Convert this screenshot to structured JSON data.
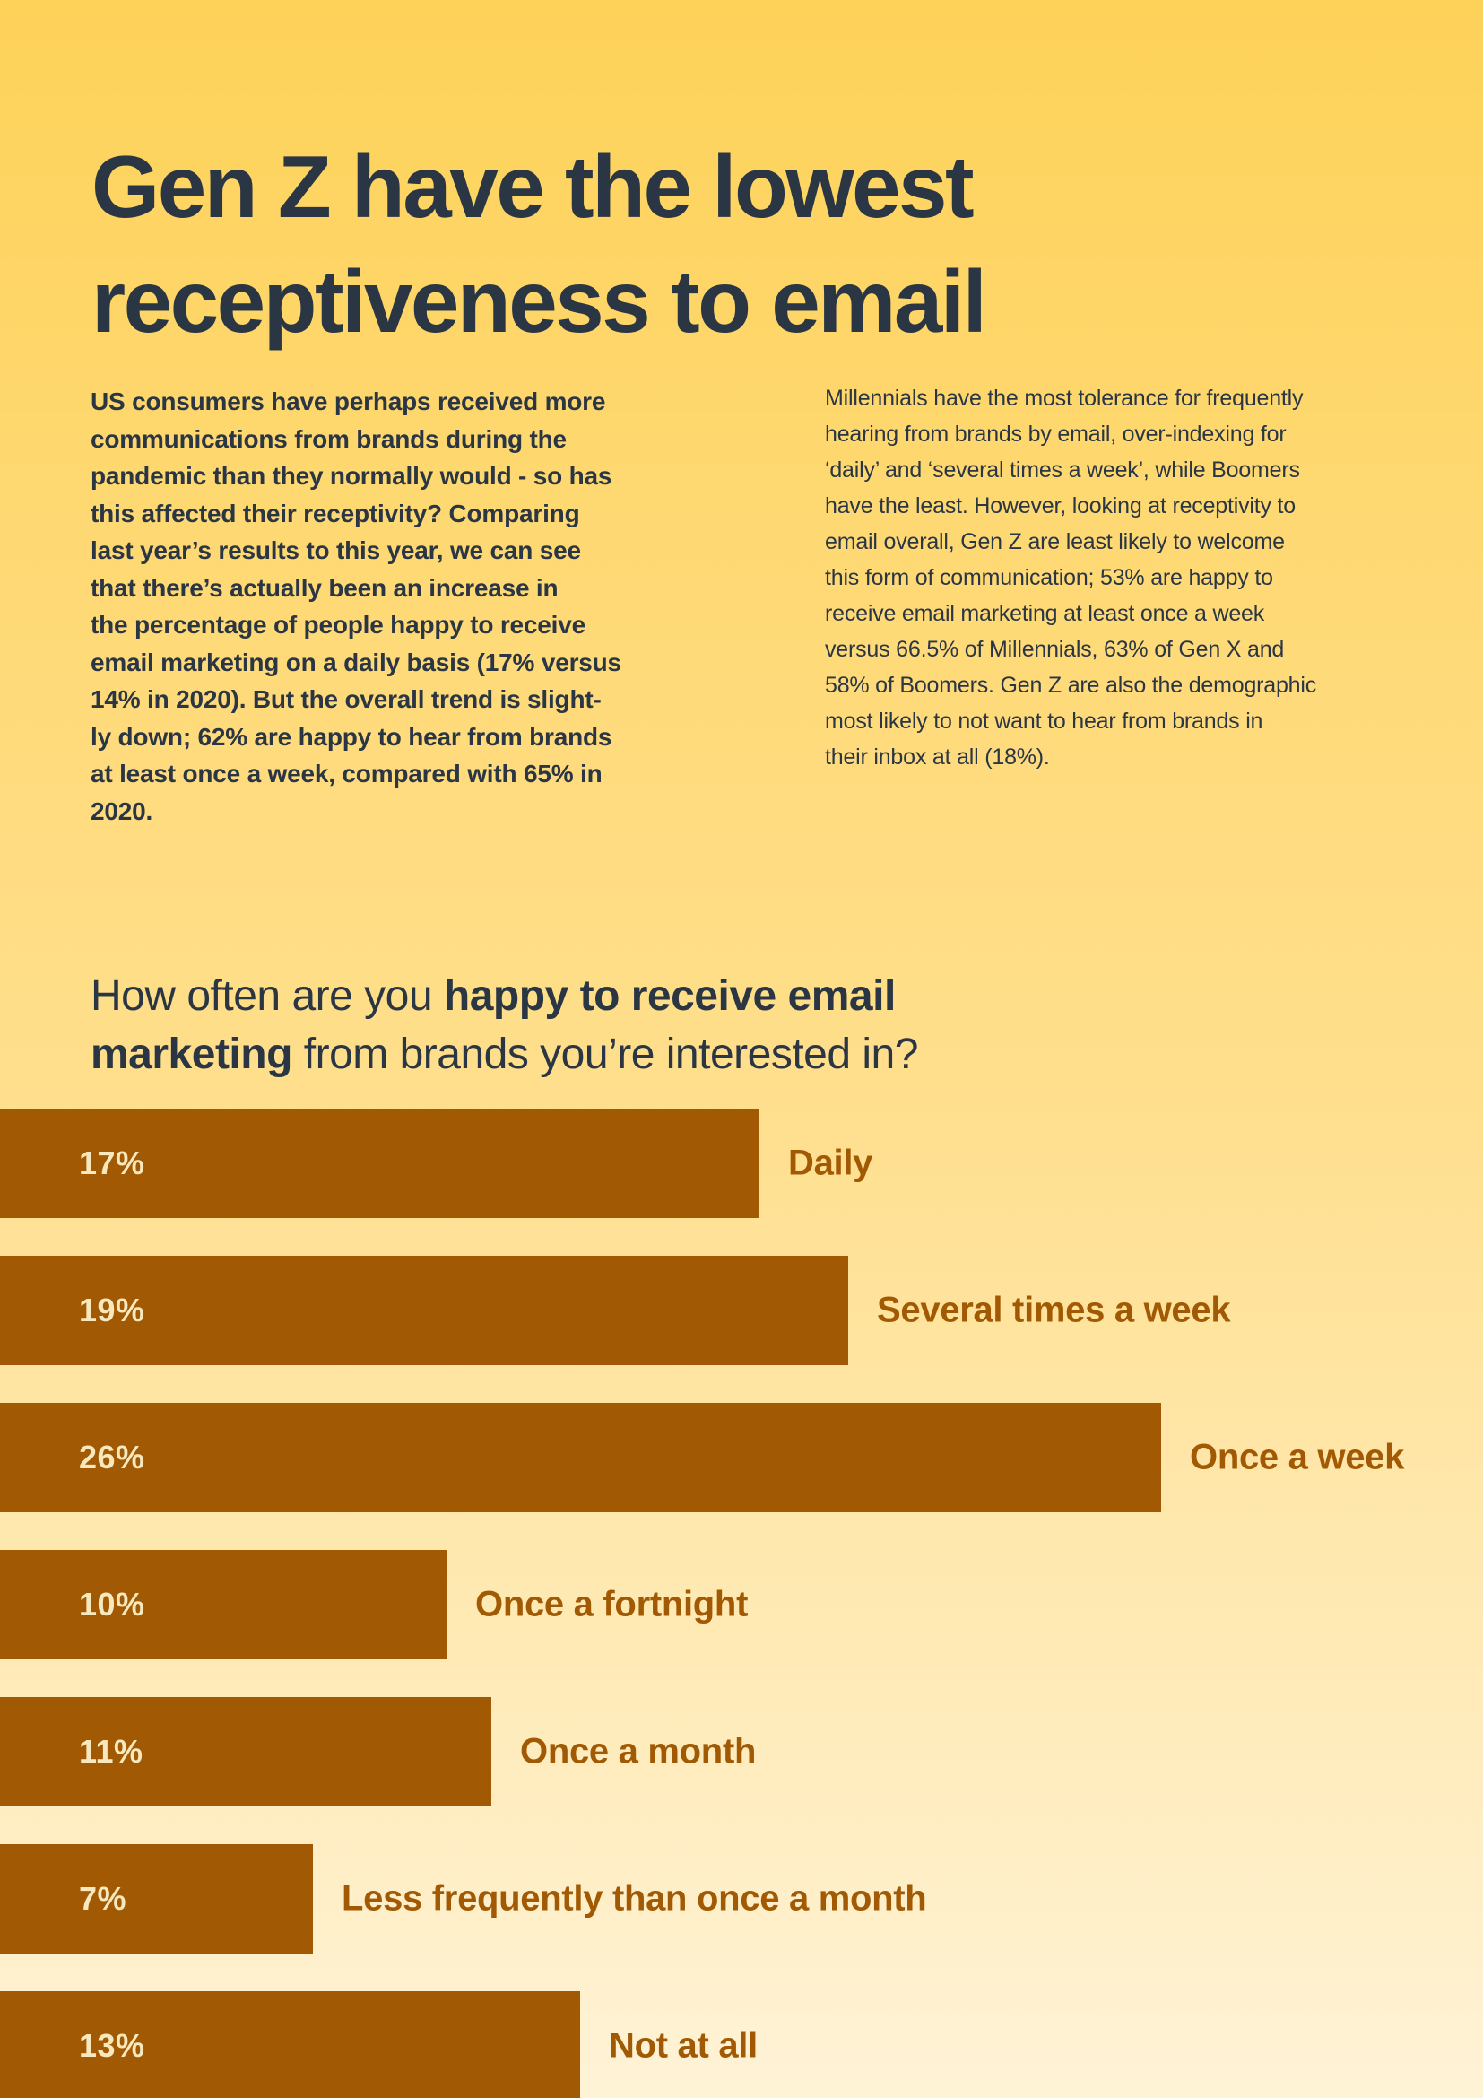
{
  "page": {
    "title": "Gen Z have the lowest\nreceptiveness to email",
    "intro_left": "US consumers have perhaps received more\ncommunications from brands during the\npandemic than they normally would - so has\nthis affected their receptivity? Comparing\nlast year’s results to this year, we can see\nthat there’s actually been an increase in\nthe percentage of people happy to receive\nemail marketing on a daily basis (17% versus\n14% in 2020). But the overall trend is slight-\nly down; 62% are happy to hear from brands\nat least once a week, compared with 65% in\n2020.",
    "intro_right": "Millennials have the most tolerance for frequently\nhearing from brands by email, over-indexing for\n‘daily’ and ‘several times a week’, while Boomers\nhave the least. However, looking at receptivity to\nemail overall, Gen Z are least likely to welcome\nthis form of communication; 53% are happy to\nreceive email marketing at least once a week\nversus 66.5% of Millennials, 63% of Gen X and\n58% of Boomers. Gen Z are also the demographic\nmost likely to not want to hear from brands in\ntheir inbox at all (18%).",
    "question": {
      "lines": [
        [
          {
            "text": "How often are you ",
            "bold": false
          },
          {
            "text": "happy to receive email",
            "bold": true
          }
        ],
        [
          {
            "text": "marketing",
            "bold": true
          },
          {
            "text": " from brands you’re interested in?",
            "bold": false
          }
        ]
      ]
    }
  },
  "chart_data": {
    "type": "bar",
    "orientation": "horizontal",
    "title": "How often are you happy to receive email marketing from brands you’re interested in?",
    "categories": [
      "Daily",
      "Several times a week",
      "Once a week",
      "Once a fortnight",
      "Once a month",
      "Less frequently than once a month",
      "Not at all"
    ],
    "values": [
      17,
      19,
      26,
      10,
      11,
      7,
      13
    ],
    "value_labels": [
      "17%",
      "19%",
      "26%",
      "10%",
      "11%",
      "7%",
      "13%"
    ],
    "unit": "%",
    "xlim": [
      0,
      33
    ],
    "grid": false,
    "legend": false,
    "bars_flush_left": true,
    "bar_color": "#A15A03",
    "value_label_color": "#F8E8BE",
    "category_label_color": "#A15A03"
  },
  "colors": {
    "background_top": "#FED259",
    "background_middle": "#FFDF8D",
    "background_bottom": "#FFF3D7",
    "ink": "#2B3644",
    "bar": "#A15A03",
    "bar_value_text": "#F8E8BE"
  }
}
